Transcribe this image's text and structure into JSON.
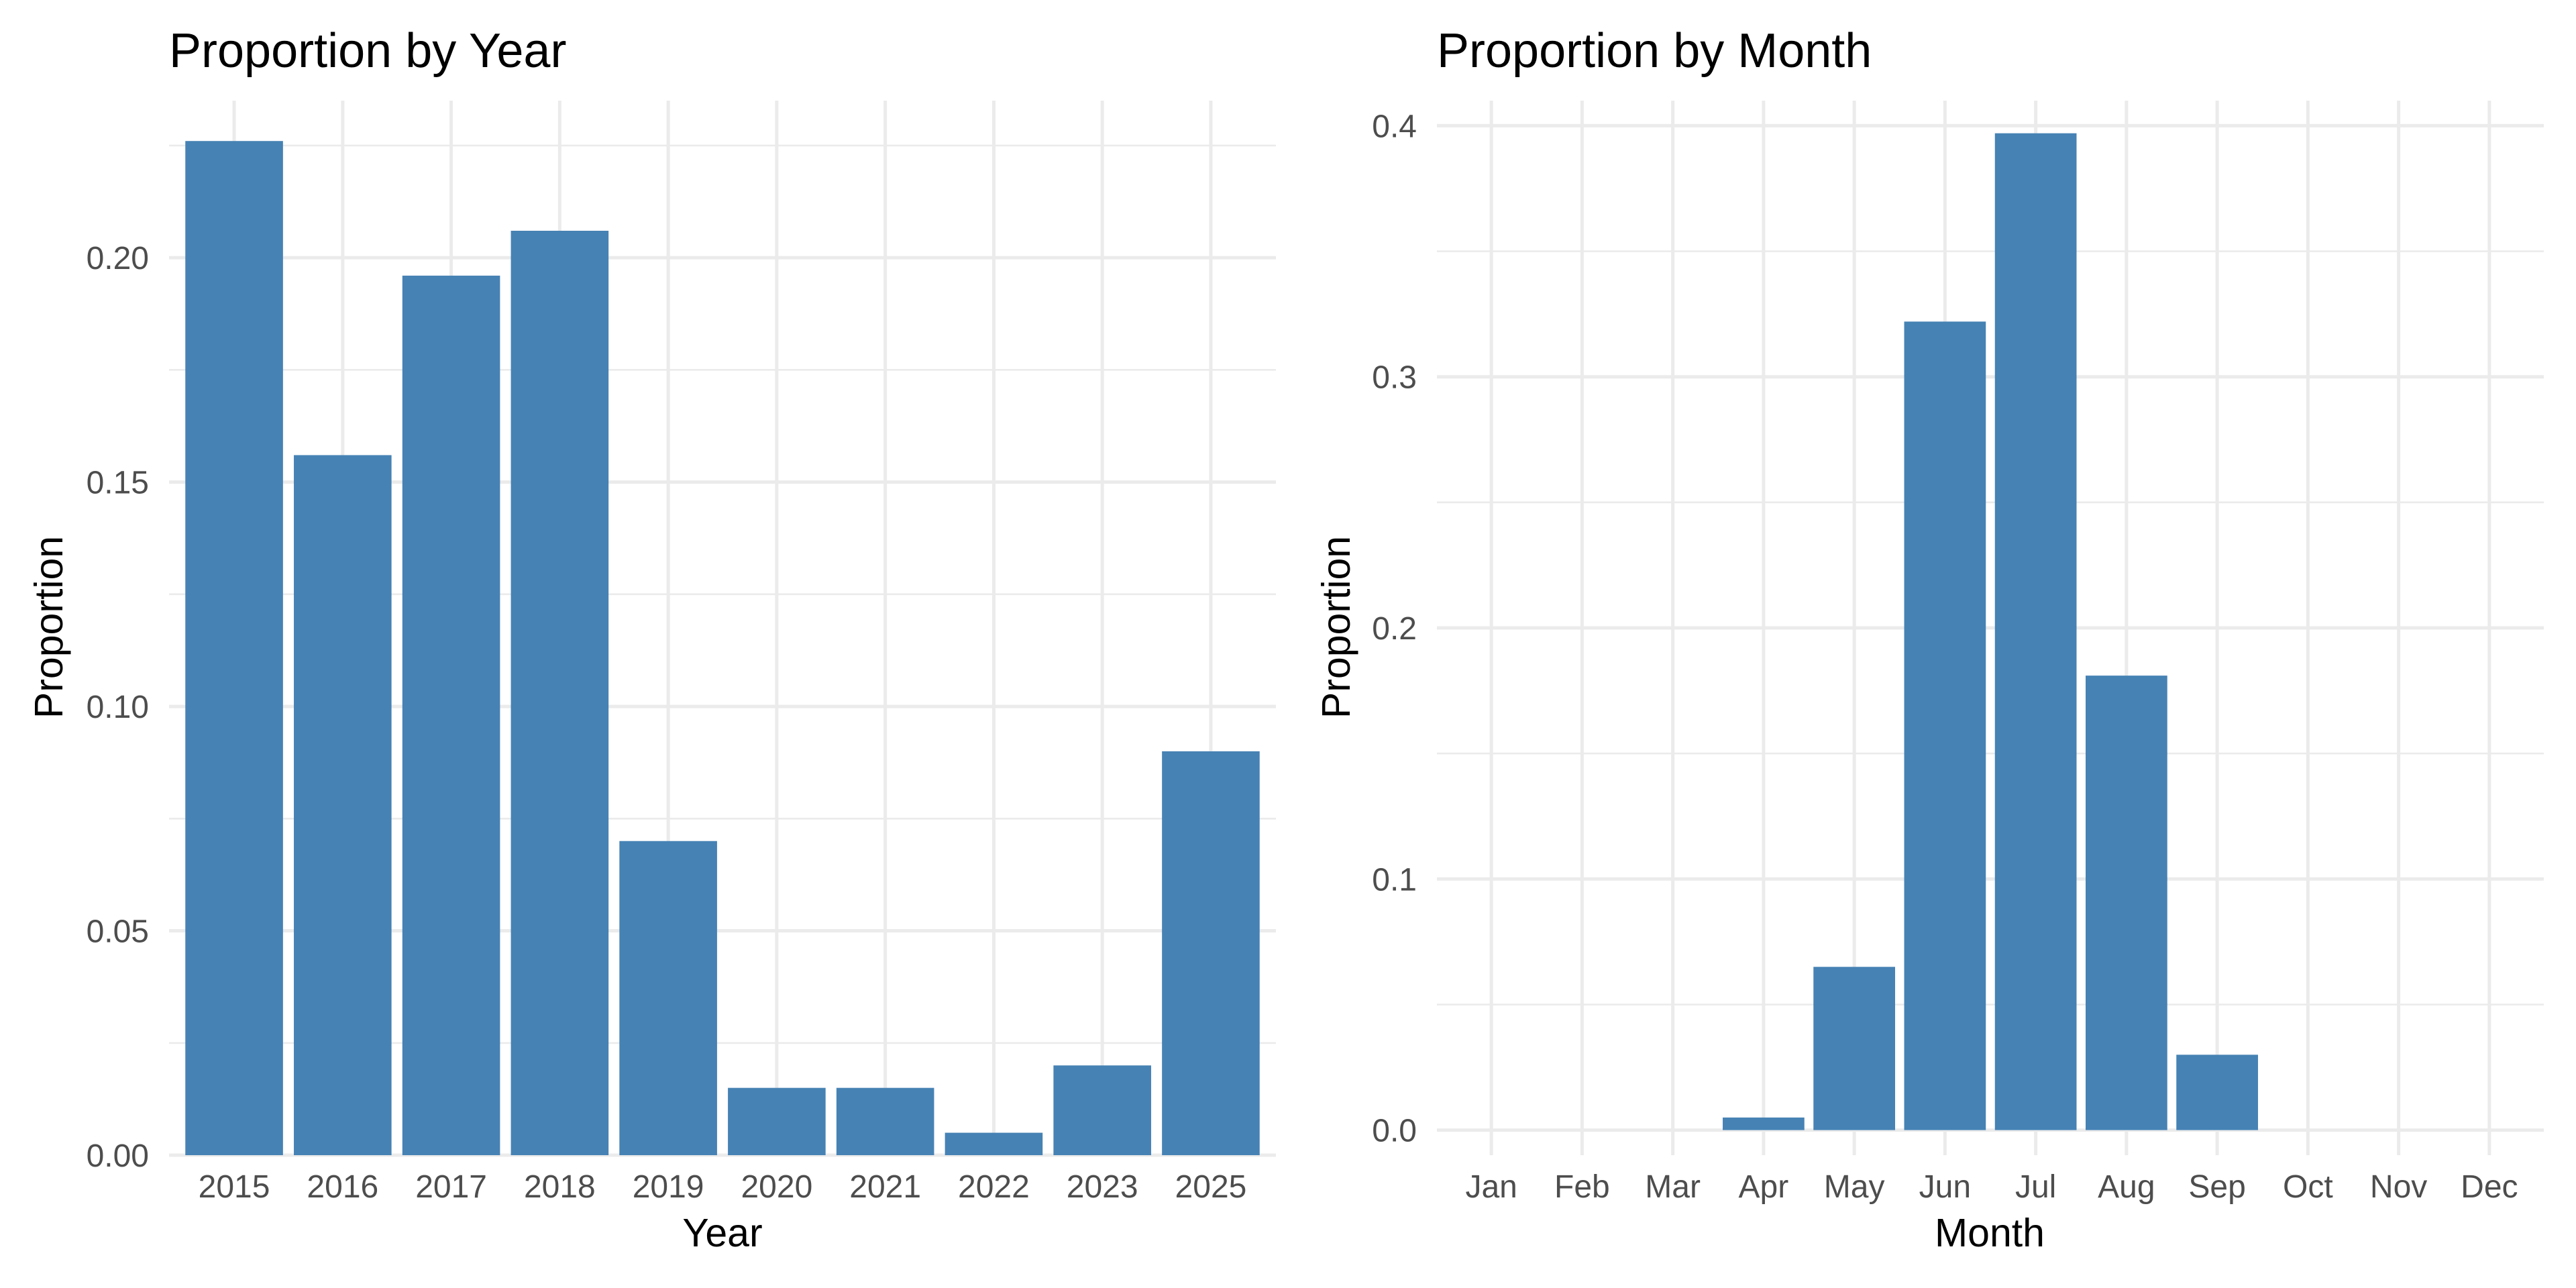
{
  "chart_data": [
    {
      "type": "bar",
      "title": "Proportion by Year",
      "xlabel": "Year",
      "ylabel": "Proportion",
      "categories": [
        "2015",
        "2016",
        "2017",
        "2018",
        "2019",
        "2020",
        "2021",
        "2022",
        "2023",
        "2025"
      ],
      "values": [
        0.226,
        0.156,
        0.196,
        0.206,
        0.07,
        0.015,
        0.015,
        0.005,
        0.02,
        0.09
      ],
      "ylim": [
        0,
        0.235
      ],
      "yticks": [
        0.0,
        0.05,
        0.1,
        0.15,
        0.2
      ],
      "ytick_labels": [
        "0.00",
        "0.05",
        "0.10",
        "0.15",
        "0.20"
      ],
      "grid": true,
      "bar_color": "#4682b4"
    },
    {
      "type": "bar",
      "title": "Proportion by Month",
      "xlabel": "Month",
      "ylabel": "Proportion",
      "categories": [
        "Jan",
        "Feb",
        "Mar",
        "Apr",
        "May",
        "Jun",
        "Jul",
        "Aug",
        "Sep",
        "Oct",
        "Nov",
        "Dec"
      ],
      "values": [
        0,
        0,
        0,
        0.005,
        0.065,
        0.322,
        0.397,
        0.181,
        0.03,
        0,
        0,
        0
      ],
      "ylim": [
        -0.01,
        0.41
      ],
      "yticks": [
        0.0,
        0.1,
        0.2,
        0.3,
        0.4
      ],
      "ytick_labels": [
        "0.0",
        "0.1",
        "0.2",
        "0.3",
        "0.4"
      ],
      "grid": true,
      "bar_color": "#4682b4"
    }
  ]
}
